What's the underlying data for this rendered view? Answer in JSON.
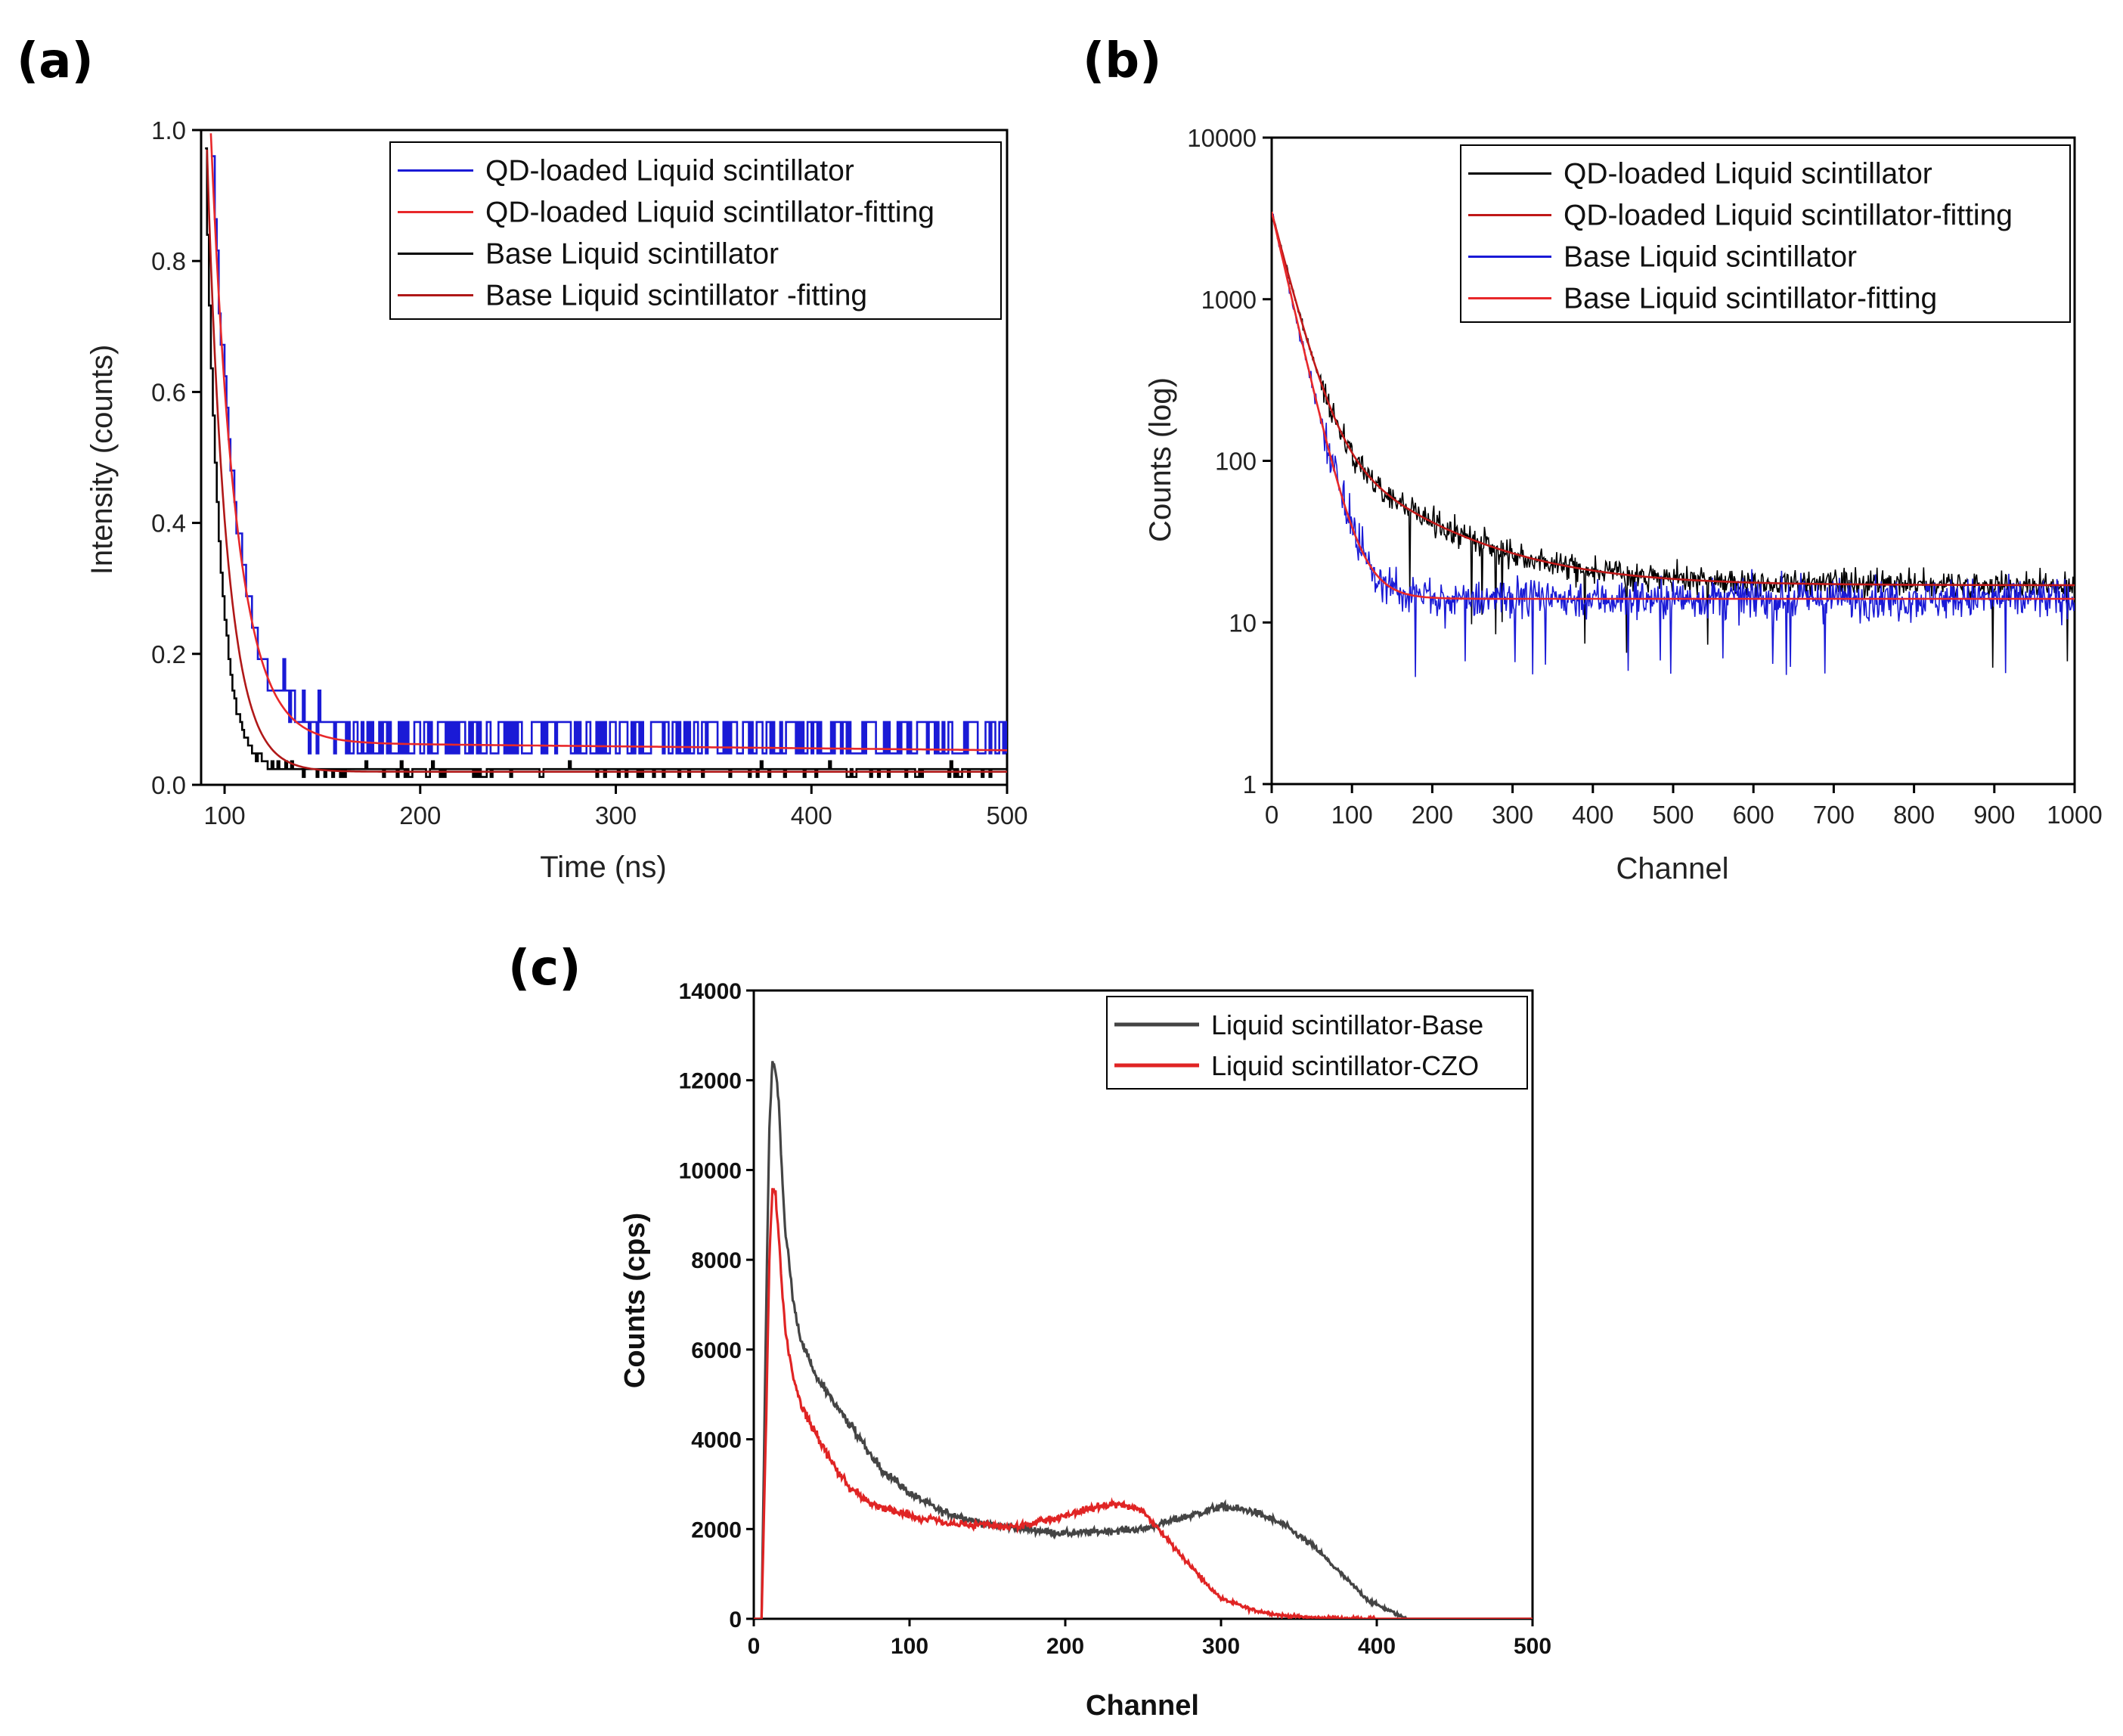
{
  "chart_data": [
    {
      "id": "a",
      "panel_label": "(a)",
      "type": "line",
      "xlabel": "Time (ns)",
      "ylabel": "Intensity (counts)",
      "xlim": [
        88,
        500
      ],
      "ylim": [
        0.0,
        1.0
      ],
      "xticks": [
        100,
        200,
        300,
        400,
        500
      ],
      "yticks": [
        0.0,
        0.2,
        0.4,
        0.6,
        0.8,
        1.0
      ],
      "ytick_labels": [
        "0.0",
        "0.2",
        "0.4",
        "0.6",
        "0.8",
        "1.0"
      ],
      "legend_position": "top-right",
      "series": [
        {
          "name": "QD-loaded Liquid scintillator",
          "color": "#1a1ad6",
          "style": "noisy-step",
          "decay": {
            "x0": 93,
            "amp": 0.92,
            "tau": 13,
            "baseline": 0.075,
            "noise": 0.03,
            "quant": 0.048
          }
        },
        {
          "name": "QD-loaded Liquid scintillator-fitting",
          "color": "#e8282a",
          "style": "smooth",
          "decay": {
            "x0": 93,
            "amp": 0.93,
            "tau": 13,
            "baseline": 0.065,
            "slope": -3e-05
          }
        },
        {
          "name": "Base Liquid scintillator",
          "color": "#000000",
          "style": "noisy-step",
          "decay": {
            "x0": 90,
            "amp": 0.95,
            "tau": 7,
            "baseline": 0.022,
            "noise": 0.008,
            "quant": 0.012
          }
        },
        {
          "name": "Base Liquid scintillator -fitting",
          "color": "#b01818",
          "style": "smooth",
          "decay": {
            "x0": 91,
            "amp": 0.95,
            "tau": 10,
            "baseline": 0.02
          }
        }
      ],
      "legend_entries": [
        "QD-loaded Liquid scintillator",
        "QD-loaded Liquid scintillator-fitting",
        "Base Liquid scintillator",
        "Base Liquid scintillator -fitting"
      ]
    },
    {
      "id": "b",
      "panel_label": "(b)",
      "type": "line",
      "yscale": "log",
      "xlabel": "Channel",
      "ylabel": "Counts (log)",
      "xlim": [
        0,
        1000
      ],
      "ylim": [
        1,
        10000
      ],
      "xticks": [
        0,
        100,
        200,
        300,
        400,
        500,
        600,
        700,
        800,
        900,
        1000
      ],
      "yticks": [
        1,
        10,
        100,
        1000,
        10000
      ],
      "legend_position": "top-right",
      "series": [
        {
          "name": "QD-loaded Liquid scintillator",
          "color": "#000000",
          "style": "noisy",
          "decay": {
            "amp1": 3300,
            "tau1": 22,
            "amp2": 150,
            "tau2": 110,
            "baseline": 17,
            "noise": 0.12
          }
        },
        {
          "name": "QD-loaded Liquid scintillator-fitting",
          "color": "#c01818",
          "style": "smooth",
          "decay": {
            "amp1": 3300,
            "tau1": 22,
            "amp2": 150,
            "tau2": 110,
            "baseline": 17
          }
        },
        {
          "name": "Base Liquid scintillator",
          "color": "#1a1ad6",
          "style": "noisy",
          "decay": {
            "amp1": 3400,
            "tau1": 20,
            "amp2": 60,
            "tau2": 30,
            "baseline": 14,
            "noise": 0.18
          }
        },
        {
          "name": "Base Liquid scintillator-fitting",
          "color": "#e8282a",
          "style": "smooth",
          "decay": {
            "amp1": 3400,
            "tau1": 20,
            "amp2": 60,
            "tau2": 30,
            "baseline": 14
          }
        }
      ],
      "legend_entries": [
        "QD-loaded Liquid scintillator",
        "QD-loaded Liquid scintillator-fitting",
        "Base Liquid scintillator",
        "Base Liquid scintillator-fitting"
      ]
    },
    {
      "id": "c",
      "panel_label": "(c)",
      "type": "line",
      "xlabel": "Channel",
      "ylabel": "Counts (cps)",
      "xlim": [
        0,
        500
      ],
      "ylim": [
        0,
        14000
      ],
      "xticks": [
        0,
        100,
        200,
        300,
        400,
        500
      ],
      "yticks": [
        0,
        2000,
        4000,
        6000,
        8000,
        10000,
        12000,
        14000
      ],
      "legend_position": "top-right",
      "series": [
        {
          "name": "Liquid scintillator-Base",
          "color": "#444444",
          "x": [
            0,
            5,
            8,
            10,
            12,
            14,
            16,
            18,
            20,
            25,
            30,
            40,
            50,
            60,
            70,
            80,
            100,
            120,
            150,
            200,
            250,
            280,
            300,
            320,
            340,
            360,
            380,
            395,
            410,
            415,
            420,
            500
          ],
          "y": [
            0,
            0,
            7000,
            11000,
            12400,
            12200,
            11500,
            10000,
            8800,
            7200,
            6200,
            5400,
            4900,
            4400,
            3900,
            3400,
            2800,
            2400,
            2100,
            1900,
            2000,
            2300,
            2500,
            2400,
            2100,
            1600,
            900,
            400,
            150,
            60,
            0,
            0
          ]
        },
        {
          "name": "Liquid scintillator-CZO",
          "color": "#e02424",
          "x": [
            0,
            5,
            8,
            10,
            12,
            14,
            16,
            20,
            25,
            30,
            40,
            50,
            60,
            70,
            80,
            100,
            130,
            170,
            200,
            220,
            235,
            250,
            260,
            275,
            290,
            300,
            320,
            340,
            360,
            380,
            400,
            500
          ],
          "y": [
            0,
            0,
            4500,
            8000,
            9600,
            9500,
            8500,
            6500,
            5400,
            4800,
            4100,
            3500,
            3000,
            2700,
            2500,
            2300,
            2100,
            2050,
            2300,
            2500,
            2550,
            2400,
            2000,
            1400,
            800,
            450,
            200,
            70,
            25,
            10,
            0,
            0
          ]
        }
      ],
      "legend_entries": [
        "Liquid scintillator-Base",
        "Liquid scintillator-CZO"
      ]
    }
  ]
}
